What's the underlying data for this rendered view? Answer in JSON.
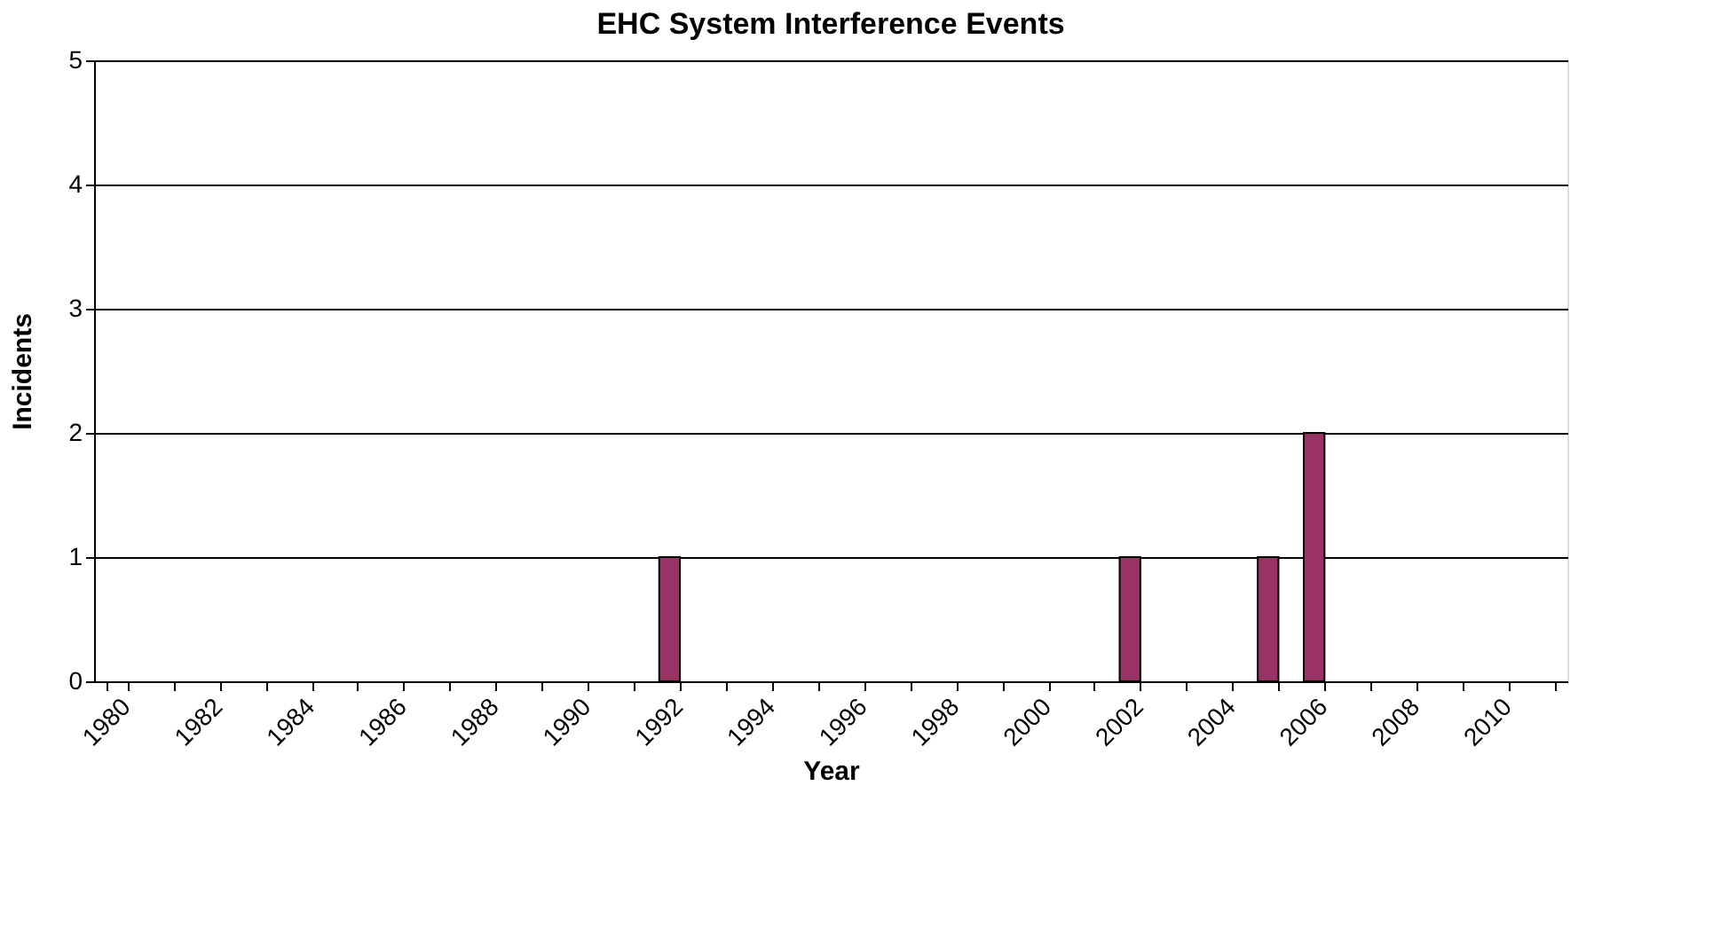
{
  "chart_data": {
    "type": "bar",
    "title": "EHC System Interference Events",
    "xlabel": "Year",
    "ylabel": "Incidents",
    "categories": [
      "1980",
      null,
      "1982",
      null,
      "1984",
      null,
      "1986",
      null,
      "1988",
      null,
      "1990",
      null,
      "1992",
      null,
      "1994",
      null,
      "1996",
      null,
      "1998",
      null,
      "2000",
      null,
      "2002",
      null,
      "2004",
      null,
      "2006",
      null,
      "2008",
      null,
      "2010",
      null
    ],
    "values": [
      0,
      0,
      0,
      0,
      0,
      0,
      0,
      0,
      0,
      0,
      0,
      0,
      1,
      0,
      0,
      0,
      0,
      0,
      0,
      0,
      0,
      0,
      1,
      0,
      0,
      1,
      2,
      0,
      0,
      0,
      0,
      0
    ],
    "color": "#993366",
    "ylim": [
      0,
      5
    ],
    "yticks": [
      0,
      1,
      2,
      3,
      4,
      5
    ],
    "grid": "y"
  }
}
